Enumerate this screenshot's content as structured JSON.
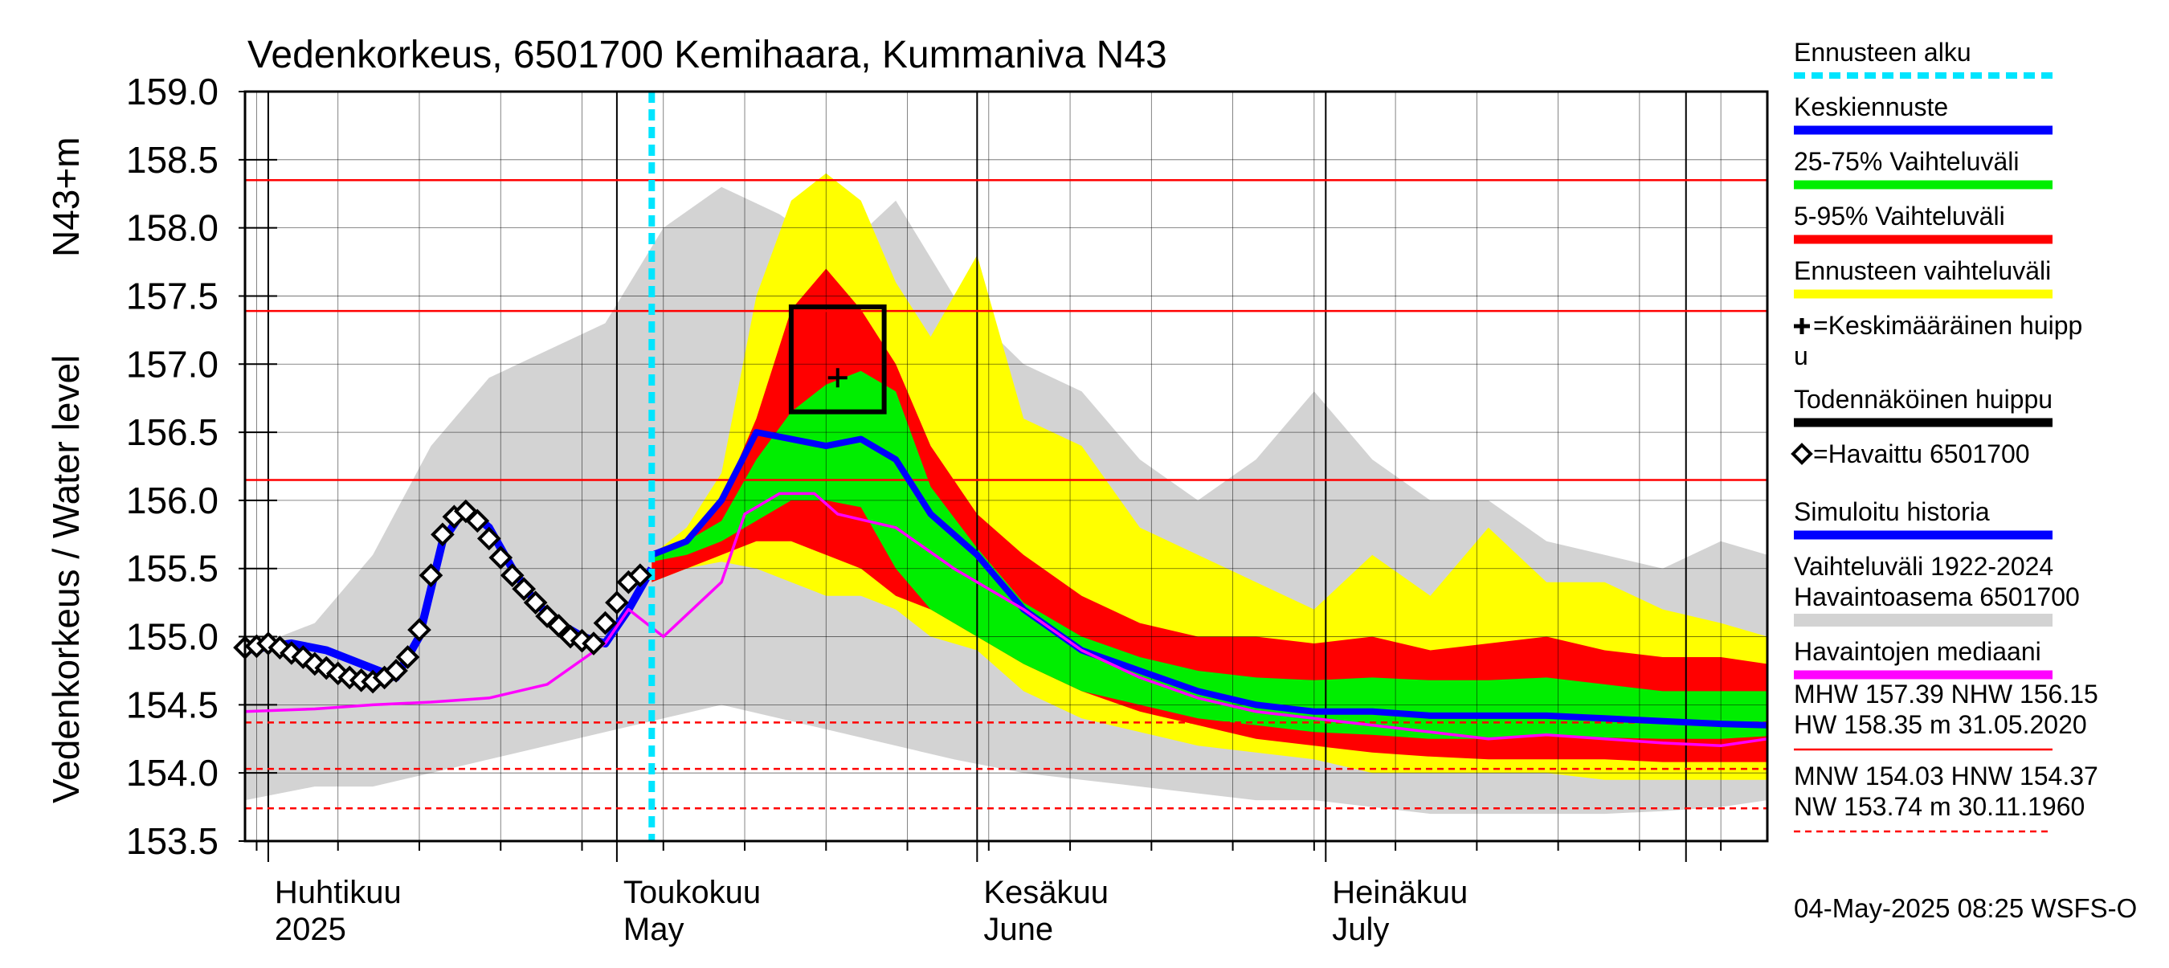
{
  "chart_data": {
    "type": "area",
    "title": "Vedenkorkeus, 6501700 Kemihaara, Kummaniva N43",
    "ylabel": "Vedenkorkeus / Water level",
    "ylabel2": "N43+m",
    "ylim": [
      153.5,
      159.0
    ],
    "yticks": [
      "159.0",
      "158.5",
      "158.0",
      "157.5",
      "157.0",
      "156.5",
      "156.0",
      "155.5",
      "155.0",
      "154.5",
      "154.0",
      "153.5"
    ],
    "ytick_values": [
      159.0,
      158.5,
      158.0,
      157.5,
      157.0,
      156.5,
      156.0,
      155.5,
      155.0,
      154.5,
      154.0,
      153.5
    ],
    "x_axis": {
      "start": "2025-03-30",
      "end": "2025-08-08"
    },
    "month_labels": [
      {
        "date": "2025-04-01",
        "fi": "Huhtikuu",
        "en": "2025"
      },
      {
        "date": "2025-05-01",
        "fi": "Toukokuu",
        "en": "May"
      },
      {
        "date": "2025-06-01",
        "fi": "Kesäkuu",
        "en": "June"
      },
      {
        "date": "2025-07-01",
        "fi": "Heinäkuu",
        "en": "July"
      }
    ],
    "forecast_start": "2025-05-04",
    "reference_lines": [
      {
        "value": 158.35,
        "style": "solid"
      },
      {
        "value": 157.39,
        "style": "solid"
      },
      {
        "value": 156.15,
        "style": "solid"
      },
      {
        "value": 154.37,
        "style": "dashed"
      },
      {
        "value": 154.03,
        "style": "dashed"
      },
      {
        "value": 153.74,
        "style": "dashed"
      }
    ],
    "probable_peak_box": {
      "x_from": "2025-05-16",
      "x_to": "2025-05-24",
      "y_from": 156.65,
      "y_to": 157.42
    },
    "mean_peak": {
      "date": "2025-05-20",
      "value": 156.9
    },
    "historical_range": {
      "x": [
        "2025-03-30",
        "2025-04-05",
        "2025-04-10",
        "2025-04-15",
        "2025-04-20",
        "2025-04-25",
        "2025-04-30",
        "2025-05-05",
        "2025-05-10",
        "2025-05-15",
        "2025-05-20",
        "2025-05-25",
        "2025-05-30",
        "2025-06-05",
        "2025-06-10",
        "2025-06-15",
        "2025-06-20",
        "2025-06-25",
        "2025-06-30",
        "2025-07-05",
        "2025-07-10",
        "2025-07-15",
        "2025-07-20",
        "2025-07-25",
        "2025-07-30",
        "2025-08-04",
        "2025-08-08"
      ],
      "upper": [
        154.9,
        155.1,
        155.6,
        156.4,
        156.9,
        157.1,
        157.3,
        158.0,
        158.3,
        158.1,
        157.8,
        158.2,
        157.5,
        157.0,
        156.8,
        156.3,
        156.0,
        156.3,
        156.8,
        156.3,
        156.0,
        156.0,
        155.7,
        155.6,
        155.5,
        155.7,
        155.6
      ],
      "lower": [
        153.8,
        153.9,
        153.9,
        154.0,
        154.1,
        154.2,
        154.3,
        154.4,
        154.5,
        154.4,
        154.3,
        154.2,
        154.1,
        154.0,
        153.95,
        153.9,
        153.85,
        153.8,
        153.8,
        153.75,
        153.7,
        153.7,
        153.7,
        153.7,
        153.72,
        153.75,
        153.8
      ]
    },
    "forecast_x": [
      "2025-05-04",
      "2025-05-07",
      "2025-05-10",
      "2025-05-13",
      "2025-05-16",
      "2025-05-19",
      "2025-05-22",
      "2025-05-25",
      "2025-05-28",
      "2025-06-01",
      "2025-06-05",
      "2025-06-10",
      "2025-06-15",
      "2025-06-20",
      "2025-06-25",
      "2025-06-30",
      "2025-07-05",
      "2025-07-10",
      "2025-07-15",
      "2025-07-20",
      "2025-07-25",
      "2025-07-30",
      "2025-08-04",
      "2025-08-08"
    ],
    "bands": [
      {
        "name": "Ennusteen vaihteluväli",
        "color": "#ffff00",
        "upper": [
          155.6,
          155.8,
          156.2,
          157.5,
          158.2,
          158.4,
          158.2,
          157.6,
          157.2,
          157.8,
          156.6,
          156.4,
          155.8,
          155.6,
          155.4,
          155.2,
          155.6,
          155.3,
          155.8,
          155.4,
          155.4,
          155.2,
          155.1,
          155.0
        ],
        "lower": [
          155.4,
          155.5,
          155.55,
          155.5,
          155.4,
          155.3,
          155.3,
          155.2,
          155.0,
          154.9,
          154.6,
          154.4,
          154.3,
          154.2,
          154.15,
          154.1,
          154.0,
          154.0,
          154.0,
          154.0,
          153.95,
          153.95,
          153.95,
          153.95
        ]
      },
      {
        "name": "5-95% Vaihteluväli",
        "color": "#ff0000",
        "upper": [
          155.6,
          155.7,
          156.0,
          156.6,
          157.4,
          157.7,
          157.4,
          157.0,
          156.4,
          155.9,
          155.6,
          155.3,
          155.1,
          155.0,
          155.0,
          154.95,
          155.0,
          154.9,
          154.95,
          155.0,
          154.9,
          154.85,
          154.85,
          154.8
        ],
        "lower": [
          155.4,
          155.5,
          155.6,
          155.7,
          155.7,
          155.6,
          155.5,
          155.3,
          155.2,
          155.0,
          154.8,
          154.6,
          154.45,
          154.35,
          154.25,
          154.2,
          154.15,
          154.12,
          154.1,
          154.1,
          154.1,
          154.08,
          154.08,
          154.08
        ]
      },
      {
        "name": "25-75% Vaihteluväli",
        "color": "#00ee00",
        "upper": [
          155.6,
          155.7,
          155.85,
          156.3,
          156.65,
          156.85,
          156.95,
          156.8,
          156.1,
          155.65,
          155.25,
          155.0,
          154.85,
          154.75,
          154.7,
          154.68,
          154.7,
          154.68,
          154.68,
          154.7,
          154.65,
          154.6,
          154.6,
          154.6
        ],
        "lower": [
          155.55,
          155.6,
          155.7,
          155.85,
          156.0,
          156.0,
          155.95,
          155.5,
          155.2,
          155.0,
          154.8,
          154.6,
          154.5,
          154.4,
          154.35,
          154.3,
          154.28,
          154.25,
          154.25,
          154.28,
          154.26,
          154.25,
          154.25,
          154.27
        ]
      }
    ],
    "series": [
      {
        "name": "Keskiennuste",
        "color": "#0000ff",
        "x": [
          "2025-05-04",
          "2025-05-07",
          "2025-05-10",
          "2025-05-13",
          "2025-05-16",
          "2025-05-19",
          "2025-05-22",
          "2025-05-25",
          "2025-05-28",
          "2025-06-01",
          "2025-06-05",
          "2025-06-10",
          "2025-06-15",
          "2025-06-20",
          "2025-06-25",
          "2025-06-30",
          "2025-07-05",
          "2025-07-10",
          "2025-07-15",
          "2025-07-20",
          "2025-07-25",
          "2025-07-30",
          "2025-08-04",
          "2025-08-08"
        ],
        "values": [
          155.6,
          155.7,
          156.0,
          156.5,
          156.45,
          156.4,
          156.45,
          156.3,
          155.9,
          155.6,
          155.2,
          154.9,
          154.75,
          154.6,
          154.5,
          154.45,
          154.45,
          154.42,
          154.42,
          154.42,
          154.4,
          154.38,
          154.36,
          154.35
        ]
      },
      {
        "name": "Simuloitu historia",
        "color": "#0000ff",
        "x": [
          "2025-03-30",
          "2025-04-03",
          "2025-04-06",
          "2025-04-09",
          "2025-04-12",
          "2025-04-14",
          "2025-04-16",
          "2025-04-18",
          "2025-04-20",
          "2025-04-22",
          "2025-04-24",
          "2025-04-26",
          "2025-04-28",
          "2025-04-30",
          "2025-05-02",
          "2025-05-04"
        ],
        "values": [
          154.9,
          154.95,
          154.9,
          154.8,
          154.7,
          155.0,
          155.7,
          155.95,
          155.8,
          155.5,
          155.25,
          155.1,
          155.0,
          154.95,
          155.2,
          155.5
        ]
      },
      {
        "name": "Havaintojen mediaani",
        "color": "#ff00ff",
        "x": [
          "2025-03-30",
          "2025-04-05",
          "2025-04-10",
          "2025-04-15",
          "2025-04-20",
          "2025-04-25",
          "2025-04-30",
          "2025-05-02",
          "2025-05-05",
          "2025-05-10",
          "2025-05-12",
          "2025-05-15",
          "2025-05-18",
          "2025-05-20",
          "2025-05-25",
          "2025-05-30",
          "2025-06-05",
          "2025-06-10",
          "2025-06-15",
          "2025-06-20",
          "2025-06-25",
          "2025-06-30",
          "2025-07-05",
          "2025-07-10",
          "2025-07-15",
          "2025-07-20",
          "2025-07-25",
          "2025-07-30",
          "2025-08-04",
          "2025-08-08"
        ],
        "values": [
          154.45,
          154.47,
          154.5,
          154.52,
          154.55,
          154.65,
          154.95,
          155.2,
          155.0,
          155.4,
          155.9,
          156.05,
          156.05,
          155.9,
          155.8,
          155.5,
          155.2,
          154.9,
          154.7,
          154.55,
          154.45,
          154.4,
          154.35,
          154.3,
          154.25,
          154.28,
          154.25,
          154.22,
          154.2,
          154.25
        ]
      }
    ],
    "observed": {
      "name": "=Havaittu 6501700",
      "x": [
        "2025-03-30",
        "2025-03-31",
        "2025-04-01",
        "2025-04-02",
        "2025-04-03",
        "2025-04-04",
        "2025-04-05",
        "2025-04-06",
        "2025-04-07",
        "2025-04-08",
        "2025-04-09",
        "2025-04-10",
        "2025-04-11",
        "2025-04-12",
        "2025-04-13",
        "2025-04-14",
        "2025-04-15",
        "2025-04-16",
        "2025-04-17",
        "2025-04-18",
        "2025-04-19",
        "2025-04-20",
        "2025-04-21",
        "2025-04-22",
        "2025-04-23",
        "2025-04-24",
        "2025-04-25",
        "2025-04-26",
        "2025-04-27",
        "2025-04-28",
        "2025-04-29",
        "2025-04-30",
        "2025-05-01",
        "2025-05-02",
        "2025-05-03"
      ],
      "values": [
        154.92,
        154.93,
        154.95,
        154.92,
        154.88,
        154.85,
        154.8,
        154.77,
        154.73,
        154.7,
        154.68,
        154.67,
        154.7,
        154.75,
        154.85,
        155.05,
        155.45,
        155.75,
        155.88,
        155.92,
        155.85,
        155.72,
        155.58,
        155.45,
        155.35,
        155.25,
        155.15,
        155.08,
        155.0,
        154.97,
        154.95,
        155.1,
        155.25,
        155.4,
        155.45
      ]
    },
    "legend": [
      {
        "label": "Ennusteen alku",
        "kind": "dashed",
        "color": "#00e5ff"
      },
      {
        "label": "Keskiennuste",
        "kind": "line",
        "color": "#0000ff"
      },
      {
        "label": "25-75% Vaihteluväli",
        "kind": "line",
        "color": "#00ee00"
      },
      {
        "label": "5-95% Vaihteluväli",
        "kind": "line",
        "color": "#ff0000"
      },
      {
        "label": "Ennusteen vaihteluväli",
        "kind": "line",
        "color": "#ffff00"
      },
      {
        "label": "=Keskimääräinen huipp",
        "label2": "u",
        "kind": "plus",
        "color": "#000000"
      },
      {
        "label": "Todennäköinen huippu",
        "kind": "line",
        "color": "#000000"
      },
      {
        "label": "=Havaittu 6501700",
        "kind": "diamond",
        "color": "#000000"
      },
      {
        "label": "Simuloitu historia",
        "kind": "line",
        "color": "#0000ff"
      },
      {
        "label": "Vaihteluväli 1922-2024",
        "label2": " Havaintoasema 6501700",
        "kind": "line",
        "color": "#d3d3d3"
      },
      {
        "label": "Havaintojen mediaani",
        "kind": "line",
        "color": "#ff00ff"
      }
    ],
    "stats": [
      {
        "line1": "MHW 157.39 NHW 156.15",
        "line2": "HW 158.35 m 31.05.2020",
        "style": "solid"
      },
      {
        "line1": "MNW 154.03 HNW 154.37",
        "line2": "NW 153.74 m 30.11.1960",
        "style": "dashed"
      }
    ],
    "footer": "04-May-2025 08:25 WSFS-O",
    "colors": {
      "grid": "#000000",
      "reference": "#ff0000",
      "history_band": "#d3d3d3",
      "forecast_start": "#00e5ff"
    }
  }
}
